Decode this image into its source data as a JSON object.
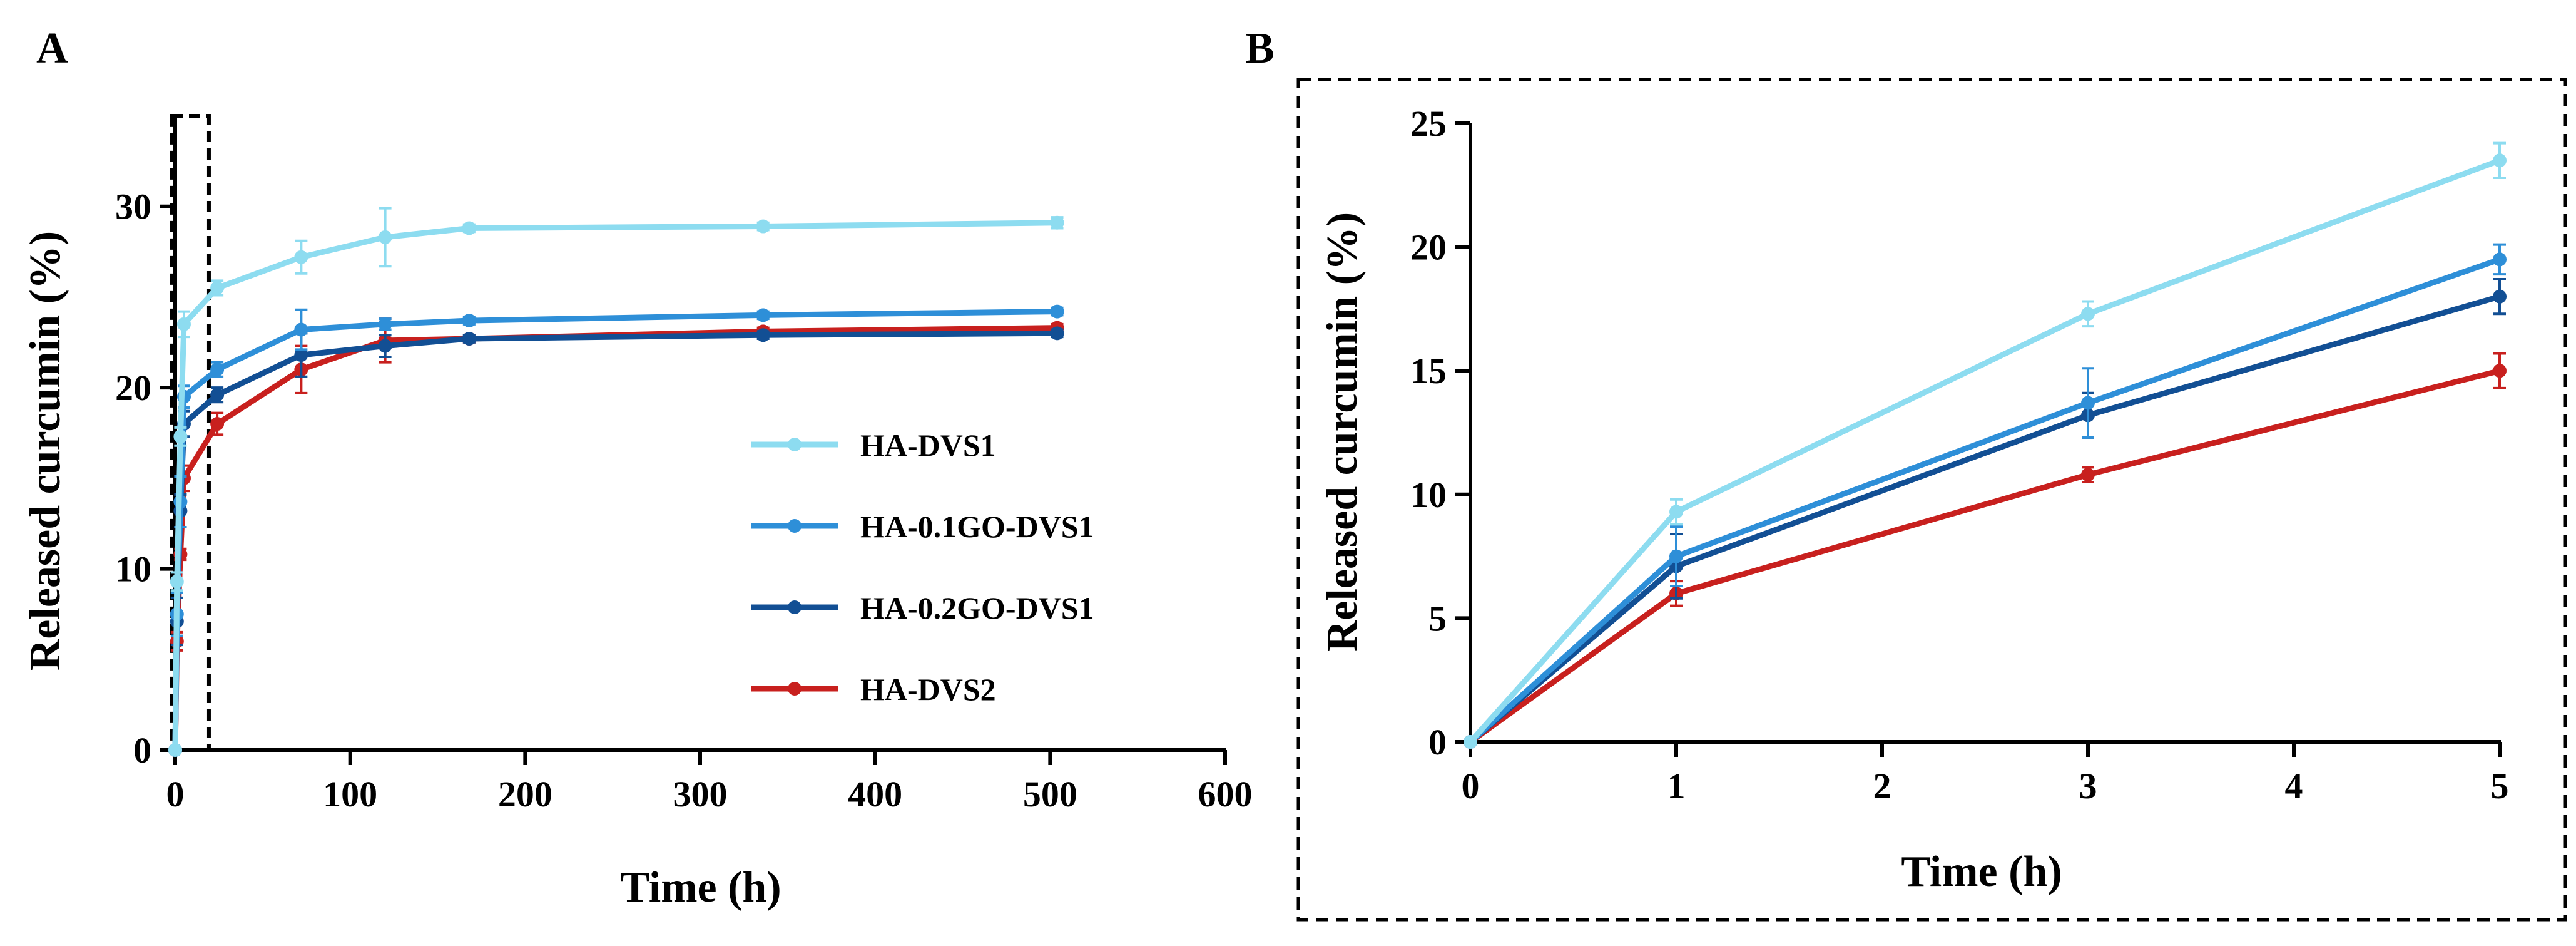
{
  "panels": [
    {
      "letter": "A",
      "xlabel": "Time (h)",
      "ylabel": "Released curcumin (%)",
      "xlim": [
        0,
        600
      ],
      "ylim": [
        0,
        35
      ],
      "xticks": [
        0,
        100,
        200,
        300,
        400,
        500,
        600
      ],
      "yticks": [
        0,
        10,
        20,
        30
      ],
      "inset_box_x": [
        0,
        15
      ]
    },
    {
      "letter": "B",
      "xlabel": "Time (h)",
      "ylabel": "Released curcumin (%)",
      "xlim": [
        0,
        5
      ],
      "ylim": [
        0,
        25
      ],
      "xticks": [
        0,
        1,
        2,
        3,
        4,
        5
      ],
      "yticks": [
        0,
        5,
        10,
        15,
        20,
        25
      ]
    }
  ],
  "series_styles": [
    {
      "name": "HA-DVS1",
      "color": "#8ddcf0"
    },
    {
      "name": "HA-0.1GO-DVS1",
      "color": "#2e8fd8"
    },
    {
      "name": "HA-0.2GO-DVS1",
      "color": "#124f94"
    },
    {
      "name": "HA-DVS2",
      "color": "#c8201e"
    }
  ],
  "chart_data": [
    {
      "type": "line",
      "panel": "A",
      "xlabel": "Time (h)",
      "ylabel": "Released curcumin (%)",
      "xlim": [
        0,
        600
      ],
      "ylim": [
        0,
        35
      ],
      "legend": "center-right",
      "series": [
        {
          "name": "HA-DVS1",
          "x": [
            0,
            1,
            3,
            5,
            24,
            72,
            120,
            168,
            336,
            504
          ],
          "values": [
            0,
            9.3,
            17.3,
            23.5,
            25.5,
            27.2,
            28.3,
            28.8,
            28.9,
            29.1
          ],
          "errors": [
            0,
            0.5,
            0.5,
            0.7,
            0.4,
            0.9,
            1.6,
            0.2,
            0.2,
            0.3
          ]
        },
        {
          "name": "HA-0.1GO-DVS1",
          "x": [
            0,
            1,
            3,
            5,
            24,
            72,
            120,
            168,
            336,
            504
          ],
          "values": [
            0,
            7.5,
            13.7,
            19.5,
            21.0,
            23.2,
            23.5,
            23.7,
            24.0,
            24.2
          ],
          "errors": [
            0,
            1.2,
            1.4,
            0.6,
            0.4,
            1.1,
            0.3,
            0.2,
            0.2,
            0.2
          ]
        },
        {
          "name": "HA-0.2GO-DVS1",
          "x": [
            0,
            1,
            3,
            5,
            24,
            72,
            120,
            168,
            336,
            504
          ],
          "values": [
            0,
            7.1,
            13.2,
            18.0,
            19.6,
            21.8,
            22.3,
            22.7,
            22.9,
            23.0
          ],
          "errors": [
            0,
            1.3,
            0.9,
            0.7,
            0.4,
            1.2,
            0.6,
            0.2,
            0.2,
            0.2
          ]
        },
        {
          "name": "HA-DVS2",
          "x": [
            0,
            1,
            3,
            5,
            24,
            72,
            120,
            168,
            336,
            504
          ],
          "values": [
            0,
            6.0,
            10.8,
            15.0,
            18.0,
            21.0,
            22.6,
            22.7,
            23.1,
            23.3
          ],
          "errors": [
            0,
            0.5,
            0.3,
            0.7,
            0.6,
            1.3,
            1.2,
            0.2,
            0.2,
            0.2
          ]
        }
      ]
    },
    {
      "type": "line",
      "panel": "B",
      "xlabel": "Time (h)",
      "ylabel": "Released curcumin (%)",
      "xlim": [
        0,
        5
      ],
      "ylim": [
        0,
        25
      ],
      "series": [
        {
          "name": "HA-DVS1",
          "x": [
            0,
            1,
            3,
            5
          ],
          "values": [
            0,
            9.3,
            17.3,
            23.5
          ],
          "errors": [
            0,
            0.5,
            0.5,
            0.7
          ]
        },
        {
          "name": "HA-0.1GO-DVS1",
          "x": [
            0,
            1,
            3,
            5
          ],
          "values": [
            0,
            7.5,
            13.7,
            19.5
          ],
          "errors": [
            0,
            1.2,
            1.4,
            0.6
          ]
        },
        {
          "name": "HA-0.2GO-DVS1",
          "x": [
            0,
            1,
            3,
            5
          ],
          "values": [
            0,
            7.1,
            13.2,
            18.0
          ],
          "errors": [
            0,
            1.3,
            0.9,
            0.7
          ]
        },
        {
          "name": "HA-DVS2",
          "x": [
            0,
            1,
            3,
            5
          ],
          "values": [
            0,
            6.0,
            10.8,
            15.0
          ],
          "errors": [
            0,
            0.5,
            0.3,
            0.7
          ]
        }
      ]
    }
  ]
}
